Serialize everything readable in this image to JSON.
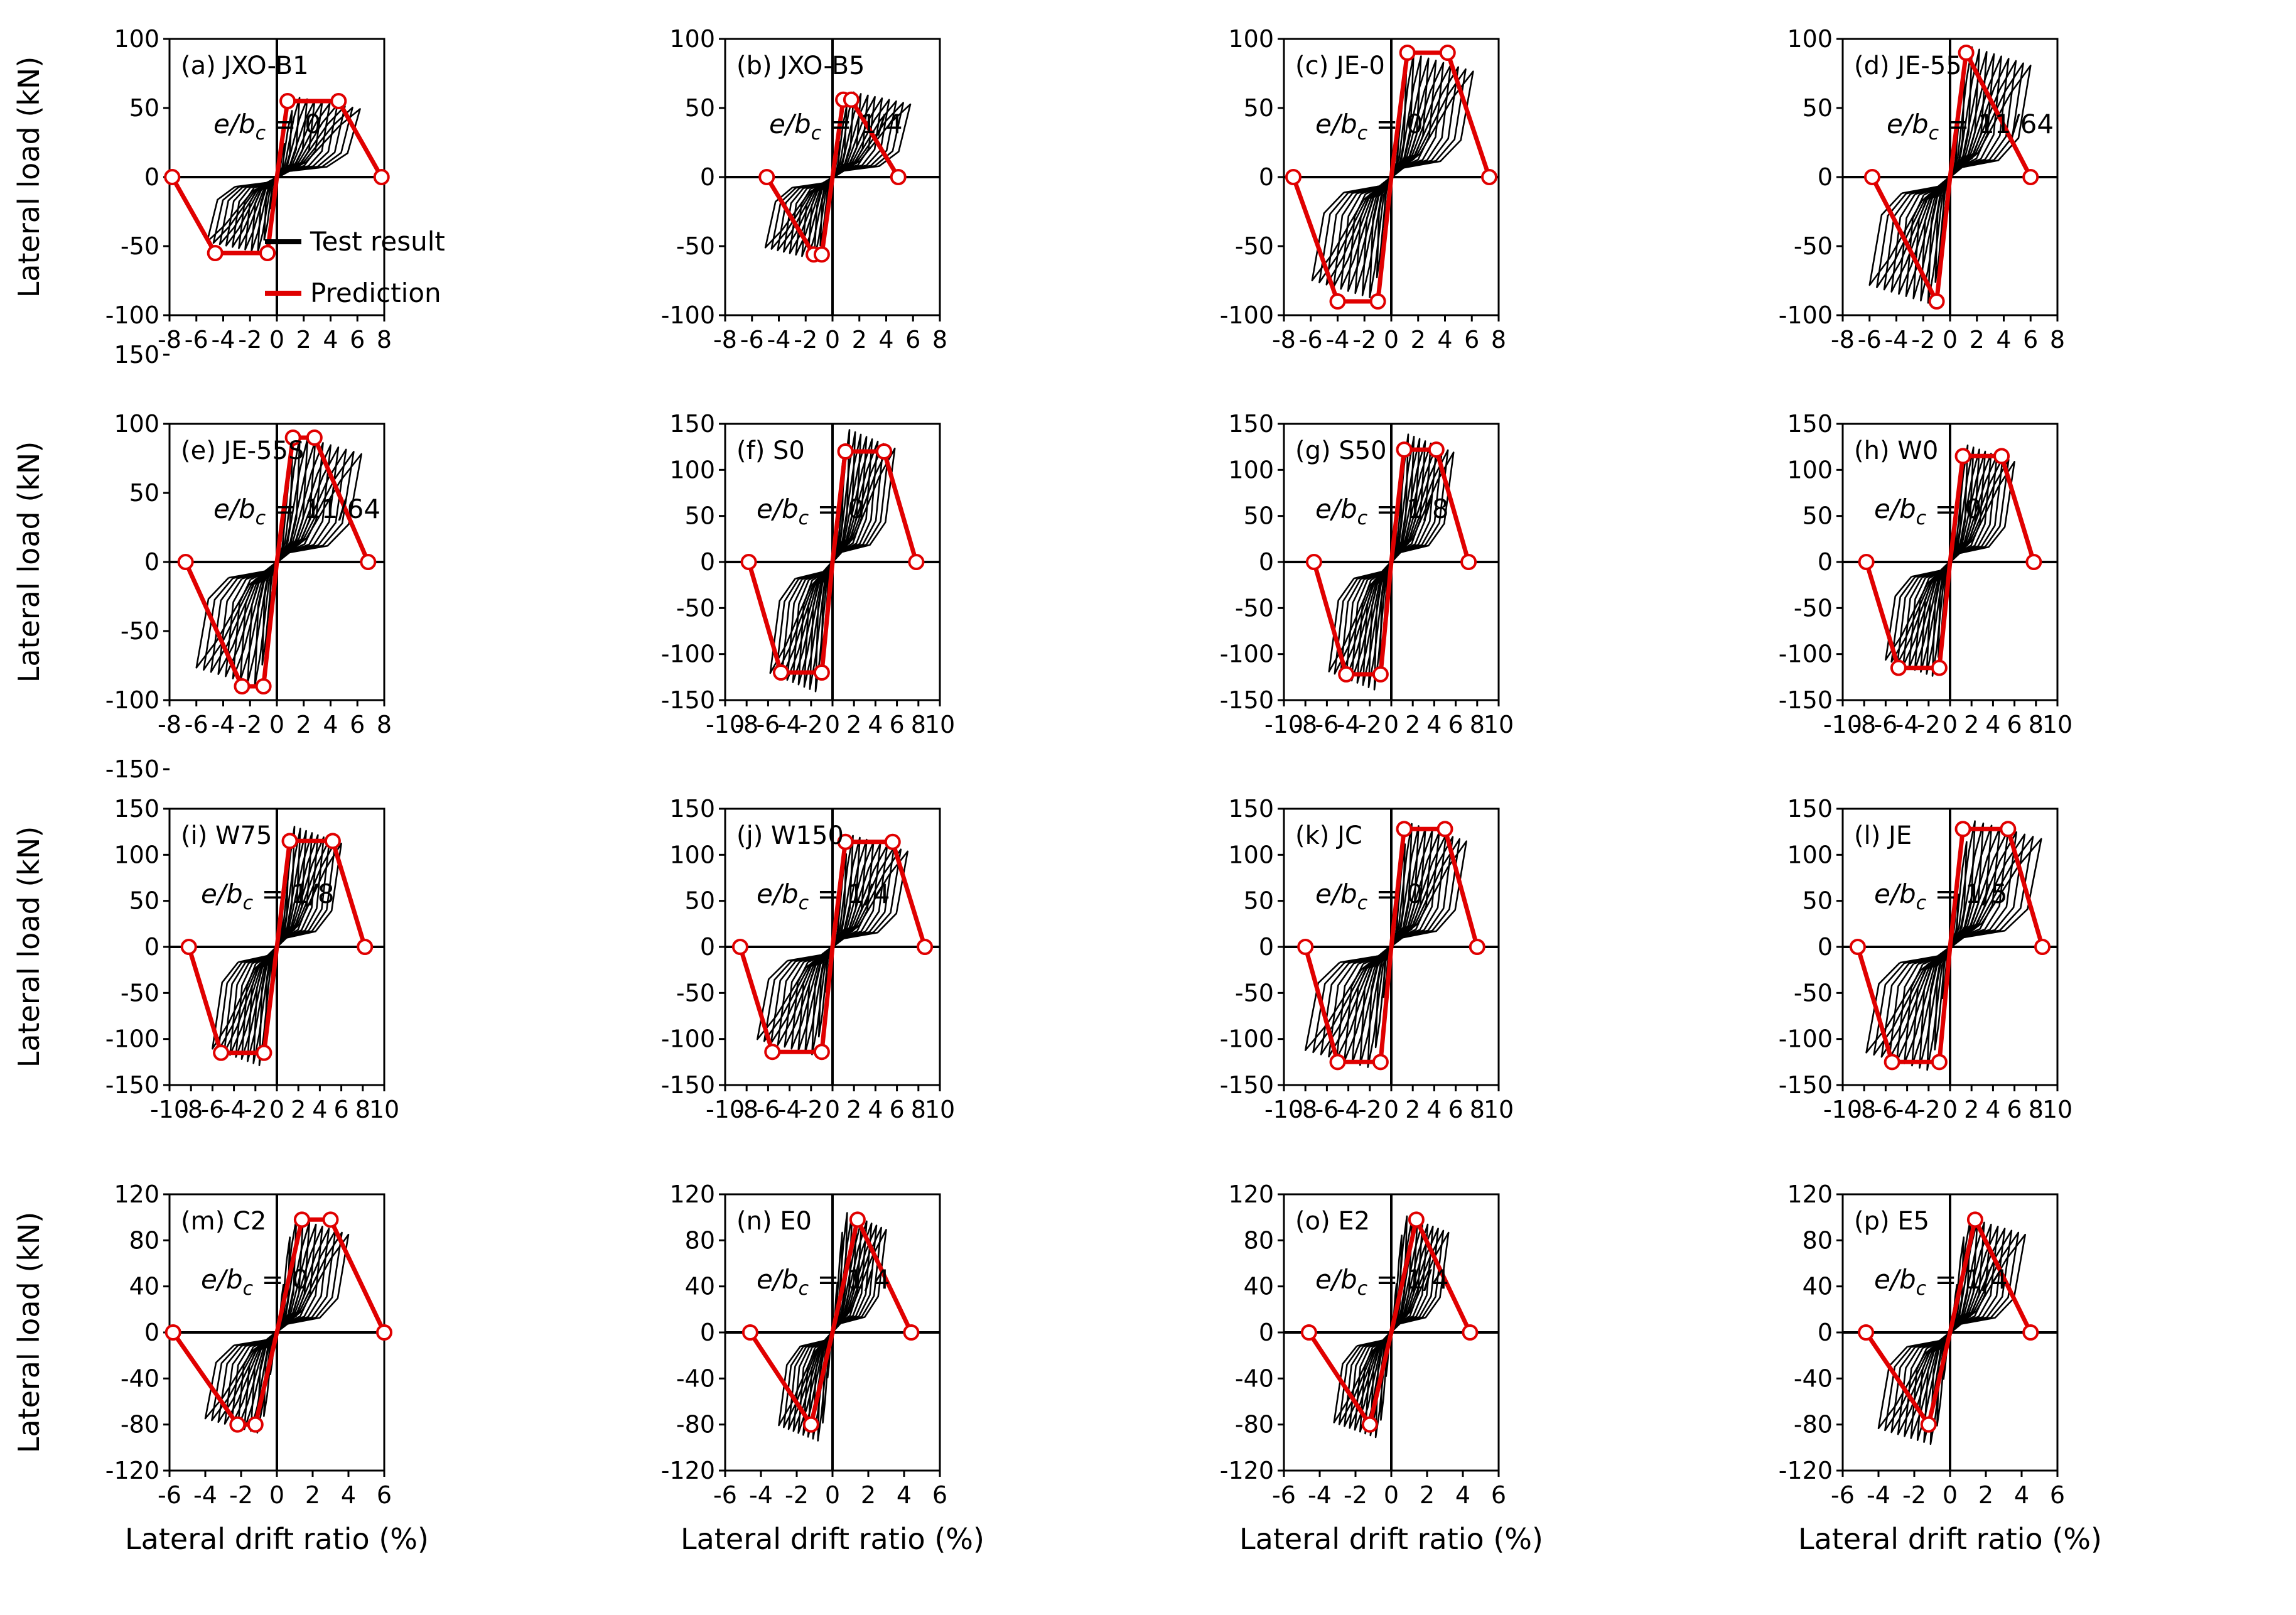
{
  "chart_data": {
    "type": "line",
    "figure_ylabel": "Lateral load (kN)",
    "figure_xlabel": "Lateral drift ratio (%)",
    "legend": [
      {
        "name": "Test result",
        "color": "#000000"
      },
      {
        "name": "Prediction",
        "color": "#e00000"
      }
    ],
    "rows": [
      {
        "xlabel": "",
        "ylabel": "Lateral load (kN)",
        "ylim": [
          -100,
          100
        ],
        "yticks": [
          -100,
          -50,
          0,
          50,
          100
        ]
      },
      {
        "xlabel": "",
        "ylabel": "Lateral load (kN)",
        "ylim": [
          -150,
          150
        ],
        "yticks": [
          -150,
          -100,
          -50,
          0,
          50,
          100,
          150
        ]
      },
      {
        "xlabel": "",
        "ylabel": "Lateral load (kN)",
        "ylim": [
          -150,
          150
        ],
        "yticks": [
          -150,
          -100,
          -50,
          0,
          50,
          100,
          150
        ]
      },
      {
        "xlabel": "Lateral drift ratio (%)",
        "ylabel": "Lateral load (kN)",
        "ylim": [
          -120,
          120
        ],
        "yticks": [
          -120,
          -80,
          -40,
          0,
          40,
          80,
          120
        ]
      }
    ],
    "panels": [
      {
        "label": "(a) JXO-B1",
        "eq_value": "0",
        "xlim": [
          -8,
          8
        ],
        "xticks": [
          -8,
          -6,
          -4,
          -2,
          0,
          2,
          4,
          6,
          8
        ],
        "ylim": [
          -100,
          100
        ],
        "peak_pos": 58,
        "peak_neg": -55,
        "xmax": 6.2,
        "xmin": -5.2,
        "prediction": [
          [
            -7.8,
            0
          ],
          [
            -4.6,
            -55
          ],
          [
            -0.7,
            -55
          ],
          [
            0,
            0
          ],
          [
            0.8,
            55
          ],
          [
            4.6,
            55
          ],
          [
            7.8,
            0
          ]
        ]
      },
      {
        "label": "(b) JXO-B5",
        "eq_value": "1/4",
        "xlim": [
          -8,
          8
        ],
        "xticks": [
          -8,
          -6,
          -4,
          -2,
          0,
          2,
          4,
          6,
          8
        ],
        "ylim": [
          -100,
          100
        ],
        "peak_pos": 62,
        "peak_neg": -60,
        "xmax": 5.8,
        "xmin": -5.0,
        "prediction": [
          [
            -4.9,
            0
          ],
          [
            -1.4,
            -56
          ],
          [
            -0.8,
            -56
          ],
          [
            0,
            0
          ],
          [
            0.8,
            56
          ],
          [
            1.4,
            56
          ],
          [
            4.9,
            0
          ]
        ]
      },
      {
        "label": "(c) JE-0",
        "eq_value": "0",
        "xlim": [
          -8,
          8
        ],
        "xticks": [
          -8,
          -6,
          -4,
          -2,
          0,
          2,
          4,
          6,
          8
        ],
        "ylim": [
          -100,
          100
        ],
        "peak_pos": 90,
        "peak_neg": -88,
        "xmax": 6.1,
        "xmin": -5.9,
        "prediction": [
          [
            -7.3,
            0
          ],
          [
            -4.0,
            -90
          ],
          [
            -1.0,
            -90
          ],
          [
            0,
            0
          ],
          [
            1.2,
            90
          ],
          [
            4.2,
            90
          ],
          [
            7.3,
            0
          ]
        ]
      },
      {
        "label": "(d) JE-55",
        "eq_value": "11/64",
        "xlim": [
          -8,
          8
        ],
        "xticks": [
          -8,
          -6,
          -4,
          -2,
          0,
          2,
          4,
          6,
          8
        ],
        "ylim": [
          -100,
          100
        ],
        "peak_pos": 95,
        "peak_neg": -92,
        "xmax": 6.0,
        "xmin": -6.0,
        "prediction": [
          [
            -5.8,
            0
          ],
          [
            -1.0,
            -90
          ],
          [
            0,
            0
          ],
          [
            1.2,
            90
          ],
          [
            6.0,
            0
          ]
        ]
      },
      {
        "label": "(e) JE-55S",
        "eq_value": "11/64",
        "xlim": [
          -8,
          8
        ],
        "xticks": [
          -8,
          -6,
          -4,
          -2,
          0,
          2,
          4,
          6,
          8
        ],
        "ylim": [
          -100,
          100
        ],
        "peak_pos": 92,
        "peak_neg": -90,
        "xmax": 6.3,
        "xmin": -6.0,
        "prediction": [
          [
            -6.8,
            0
          ],
          [
            -2.6,
            -90
          ],
          [
            -1.0,
            -90
          ],
          [
            0,
            0
          ],
          [
            1.2,
            90
          ],
          [
            2.8,
            90
          ],
          [
            6.8,
            0
          ]
        ]
      },
      {
        "label": "(f) S0",
        "eq_value": "0",
        "xlim": [
          -10,
          10
        ],
        "xticks": [
          -10,
          -8,
          -6,
          -4,
          -2,
          0,
          2,
          4,
          6,
          8,
          10
        ],
        "ylim": [
          -150,
          150
        ],
        "peak_pos": 145,
        "peak_neg": -142,
        "xmax": 5.8,
        "xmin": -5.8,
        "prediction": [
          [
            -7.8,
            0
          ],
          [
            -4.8,
            -120
          ],
          [
            -1.0,
            -120
          ],
          [
            0,
            0
          ],
          [
            1.2,
            120
          ],
          [
            4.8,
            120
          ],
          [
            7.8,
            0
          ]
        ]
      },
      {
        "label": "(g) S50",
        "eq_value": "1/8",
        "xlim": [
          -10,
          10
        ],
        "xticks": [
          -10,
          -8,
          -6,
          -4,
          -2,
          0,
          2,
          4,
          6,
          8,
          10
        ],
        "ylim": [
          -150,
          150
        ],
        "peak_pos": 140,
        "peak_neg": -140,
        "xmax": 5.8,
        "xmin": -5.8,
        "prediction": [
          [
            -7.2,
            0
          ],
          [
            -4.2,
            -122
          ],
          [
            -1.0,
            -122
          ],
          [
            0,
            0
          ],
          [
            1.2,
            122
          ],
          [
            4.2,
            122
          ],
          [
            7.2,
            0
          ]
        ]
      },
      {
        "label": "(h) W0",
        "eq_value": "0",
        "xlim": [
          -10,
          10
        ],
        "xticks": [
          -10,
          -8,
          -6,
          -4,
          -2,
          0,
          2,
          4,
          6,
          8,
          10
        ],
        "ylim": [
          -150,
          150
        ],
        "peak_pos": 128,
        "peak_neg": -125,
        "xmax": 6.0,
        "xmin": -6.0,
        "prediction": [
          [
            -7.8,
            0
          ],
          [
            -4.8,
            -115
          ],
          [
            -1.0,
            -115
          ],
          [
            0,
            0
          ],
          [
            1.2,
            115
          ],
          [
            4.8,
            115
          ],
          [
            7.8,
            0
          ]
        ]
      },
      {
        "label": "(i) W75",
        "eq_value": "1/8",
        "xlim": [
          -10,
          10
        ],
        "xticks": [
          -10,
          -8,
          -6,
          -4,
          -2,
          0,
          2,
          4,
          6,
          8,
          10
        ],
        "ylim": [
          -150,
          150
        ],
        "peak_pos": 132,
        "peak_neg": -130,
        "xmax": 6.0,
        "xmin": -6.0,
        "prediction": [
          [
            -8.2,
            0
          ],
          [
            -5.2,
            -115
          ],
          [
            -1.2,
            -115
          ],
          [
            0,
            0
          ],
          [
            1.2,
            115
          ],
          [
            5.2,
            115
          ],
          [
            8.2,
            0
          ]
        ]
      },
      {
        "label": "(j) W150",
        "eq_value": "1/4",
        "xlim": [
          -10,
          10
        ],
        "xticks": [
          -10,
          -8,
          -6,
          -4,
          -2,
          0,
          2,
          4,
          6,
          8,
          10
        ],
        "ylim": [
          -150,
          150
        ],
        "peak_pos": 122,
        "peak_neg": -118,
        "xmax": 7.0,
        "xmin": -7.0,
        "prediction": [
          [
            -8.6,
            0
          ],
          [
            -5.6,
            -114
          ],
          [
            -1.0,
            -114
          ],
          [
            0,
            0
          ],
          [
            1.2,
            114
          ],
          [
            5.6,
            114
          ],
          [
            8.6,
            0
          ]
        ]
      },
      {
        "label": "(k) JC",
        "eq_value": "0",
        "xlim": [
          -10,
          10
        ],
        "xticks": [
          -10,
          -8,
          -6,
          -4,
          -2,
          0,
          2,
          4,
          6,
          8,
          10
        ],
        "ylim": [
          -150,
          150
        ],
        "peak_pos": 135,
        "peak_neg": -132,
        "xmax": 7.0,
        "xmin": -8.0,
        "prediction": [
          [
            -8.0,
            0
          ],
          [
            -5.0,
            -125
          ],
          [
            -1.0,
            -125
          ],
          [
            0,
            0
          ],
          [
            1.2,
            128
          ],
          [
            5.0,
            128
          ],
          [
            8.0,
            0
          ]
        ]
      },
      {
        "label": "(l) JE",
        "eq_value": "1/5",
        "xlim": [
          -10,
          10
        ],
        "xticks": [
          -10,
          -8,
          -6,
          -4,
          -2,
          0,
          2,
          4,
          6,
          8,
          10
        ],
        "ylim": [
          -150,
          150
        ],
        "peak_pos": 138,
        "peak_neg": -135,
        "xmax": 8.5,
        "xmin": -7.8,
        "prediction": [
          [
            -8.6,
            0
          ],
          [
            -5.4,
            -125
          ],
          [
            -1.0,
            -125
          ],
          [
            0,
            0
          ],
          [
            1.2,
            128
          ],
          [
            5.4,
            128
          ],
          [
            8.6,
            0
          ]
        ]
      },
      {
        "label": "(m) C2",
        "eq_value": "0",
        "xlim": [
          -6,
          6
        ],
        "xticks": [
          -6,
          -4,
          -2,
          0,
          2,
          4,
          6
        ],
        "ylim": [
          -120,
          120
        ],
        "peak_pos": 100,
        "peak_neg": -88,
        "xmax": 4.0,
        "xmin": -4.0,
        "prediction": [
          [
            -5.8,
            0
          ],
          [
            -2.2,
            -80
          ],
          [
            -1.2,
            -80
          ],
          [
            0,
            0
          ],
          [
            1.4,
            98
          ],
          [
            3.0,
            98
          ],
          [
            6.0,
            0
          ]
        ]
      },
      {
        "label": "(n) E0",
        "eq_value": "1/4",
        "xlim": [
          -6,
          6
        ],
        "xticks": [
          -6,
          -4,
          -2,
          0,
          2,
          4,
          6
        ],
        "ylim": [
          -120,
          120
        ],
        "peak_pos": 105,
        "peak_neg": -95,
        "xmax": 3.0,
        "xmin": -3.0,
        "prediction": [
          [
            -4.6,
            0
          ],
          [
            -1.2,
            -80
          ],
          [
            0,
            0
          ],
          [
            1.4,
            98
          ],
          [
            4.4,
            0
          ]
        ]
      },
      {
        "label": "(o) E2",
        "eq_value": "1/4",
        "xlim": [
          -6,
          6
        ],
        "xticks": [
          -6,
          -4,
          -2,
          0,
          2,
          4,
          6
        ],
        "ylim": [
          -120,
          120
        ],
        "peak_pos": 102,
        "peak_neg": -92,
        "xmax": 3.2,
        "xmin": -3.2,
        "prediction": [
          [
            -4.6,
            0
          ],
          [
            -1.2,
            -80
          ],
          [
            0,
            0
          ],
          [
            1.4,
            98
          ],
          [
            4.4,
            0
          ]
        ]
      },
      {
        "label": "(p) E5",
        "eq_value": "1/4",
        "xlim": [
          -6,
          6
        ],
        "xticks": [
          -6,
          -4,
          -2,
          0,
          2,
          4,
          6
        ],
        "ylim": [
          -120,
          120
        ],
        "peak_pos": 100,
        "peak_neg": -98,
        "xmax": 4.2,
        "xmin": -4.0,
        "prediction": [
          [
            -4.7,
            0
          ],
          [
            -1.2,
            -80
          ],
          [
            0,
            0
          ],
          [
            1.4,
            98
          ],
          [
            4.5,
            0
          ]
        ]
      }
    ]
  },
  "colors": {
    "prediction": "#e00000",
    "test": "#000000"
  }
}
